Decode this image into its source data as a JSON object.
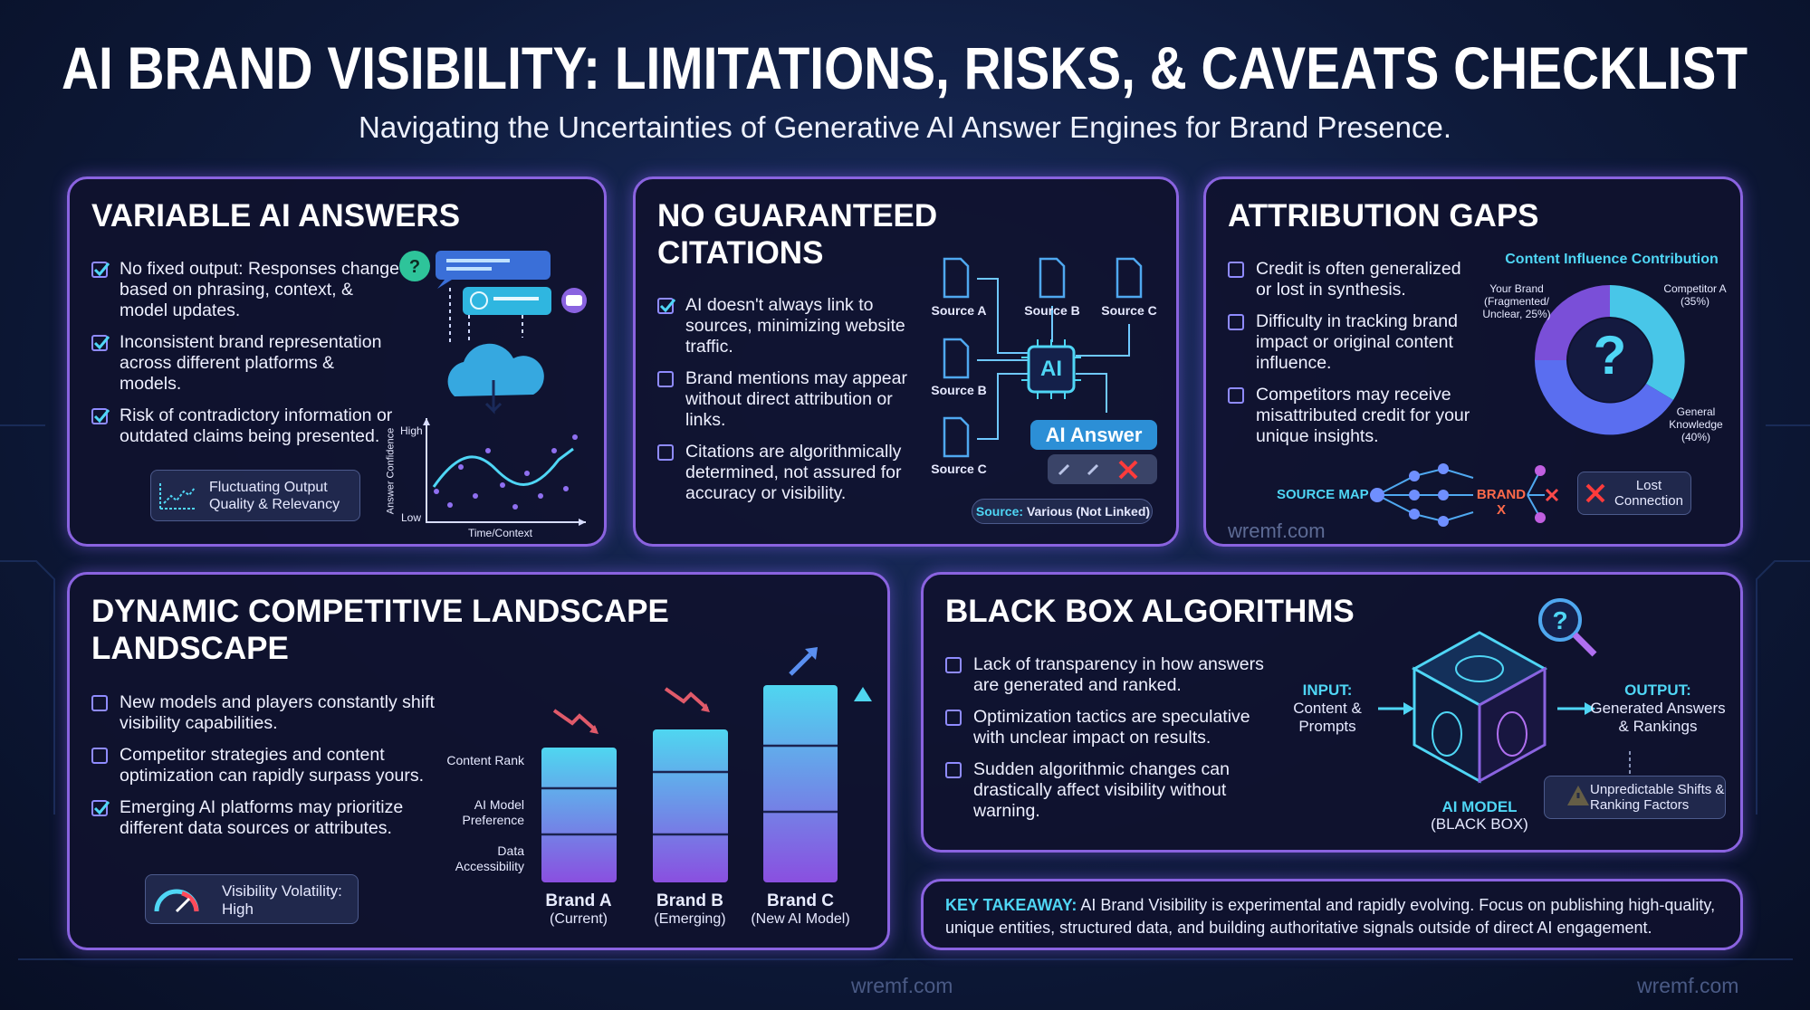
{
  "header": {
    "title": "AI BRAND VISIBILITY: LIMITATIONS, RISKS, & CAVEATS CHECKLIST",
    "subtitle": "Navigating the Uncertainties of Generative AI Answer Engines for Brand Presence."
  },
  "panels": [
    {
      "title": "VARIABLE AI ANSWERS",
      "items": [
        {
          "checked": true,
          "text": "No fixed output: Responses change based on phrasing, context, & model updates."
        },
        {
          "checked": true,
          "text": "Inconsistent brand representation across different platforms & models."
        },
        {
          "checked": true,
          "text": "Risk of contradictory information or outdated claims being presented."
        }
      ],
      "chart_labels": {
        "high": "High",
        "low": "Low",
        "y_axis": "Answer Confidence",
        "x_axis": "Time/Context"
      },
      "badge": "Fluctuating Output Quality & Relevancy"
    },
    {
      "title": "NO GUARANTEED CITATIONS",
      "items": [
        {
          "checked": true,
          "text": "AI doesn't always link to sources, minimizing website traffic."
        },
        {
          "checked": false,
          "text": "Brand mentions may appear without direct attribution or links."
        },
        {
          "checked": false,
          "text": "Citations are algorithmically determined, not assured for accuracy or visibility."
        }
      ],
      "sources": [
        "Source A",
        "Source B",
        "Source C",
        "Source B",
        "Source C"
      ],
      "ai_label": "AI",
      "answer": "AI Answer",
      "source_note": {
        "label": "Source:",
        "text": "Various (Not Linked)"
      }
    },
    {
      "title": "ATTRIBUTION GAPS",
      "items": [
        {
          "checked": false,
          "text": "Credit is often generalized or lost in synthesis."
        },
        {
          "checked": false,
          "text": "Difficulty in tracking brand impact or original content influence."
        },
        {
          "checked": false,
          "text": "Competitors may receive misattributed credit for your unique insights."
        }
      ],
      "donut": {
        "title": "Content Influence Contribution",
        "center": "?",
        "labels": [
          "Your Brand (Fragmented/ Unclear, 25%)",
          "Competitor A (35%)",
          "General Knowledge (40%)"
        ]
      },
      "source_map": {
        "label": "SOURCE MAP",
        "brand": "BRAND X",
        "lost": "Lost Connection"
      },
      "watermark": "wremf.com"
    },
    {
      "title": "DYNAMIC COMPETITIVE LANDSCAPE LANDSCAPE",
      "items": [
        {
          "checked": false,
          "text": "New models and players constantly shift visibility capabilities."
        },
        {
          "checked": false,
          "text": "Competitor strategies and content optimization can rapidly surpass yours."
        },
        {
          "checked": true,
          "text": "Emerging AI platforms may prioritize different data sources or attributes."
        }
      ],
      "gauge": "Visibility Volatility: High",
      "bar_rows": [
        "Content Rank",
        "AI Model Preference",
        "Data Accessibility"
      ],
      "brands": [
        {
          "name": "Brand A",
          "note": "(Current)"
        },
        {
          "name": "Brand B",
          "note": "(Emerging)"
        },
        {
          "name": "Brand C",
          "note": "(New AI Model)"
        }
      ]
    },
    {
      "title": "BLACK BOX ALGORITHMS",
      "items": [
        {
          "checked": false,
          "text": "Lack of transparency in how answers are generated and ranked."
        },
        {
          "checked": false,
          "text": "Optimization tactics are speculative with unclear impact on results."
        },
        {
          "checked": false,
          "text": "Sudden algorithmic changes can drastically affect visibility without warning."
        }
      ],
      "input": {
        "label": "INPUT:",
        "text": "Content & Prompts"
      },
      "output": {
        "label": "OUTPUT:",
        "text": "Generated Answers & Rankings"
      },
      "model": {
        "label": "AI MODEL",
        "text": "(BLACK BOX)"
      },
      "warning": "Unpredictable Shifts & Ranking Factors"
    }
  ],
  "takeaway": {
    "label": "KEY TAKEAWAY:",
    "text": "AI Brand Visibility is experimental and rapidly evolving. Focus on publishing high-quality, unique entities, structured data, and building authoritative signals outside of direct AI engagement."
  },
  "footer": {
    "watermarks": [
      "wremf.com",
      "wremf.com"
    ]
  }
}
